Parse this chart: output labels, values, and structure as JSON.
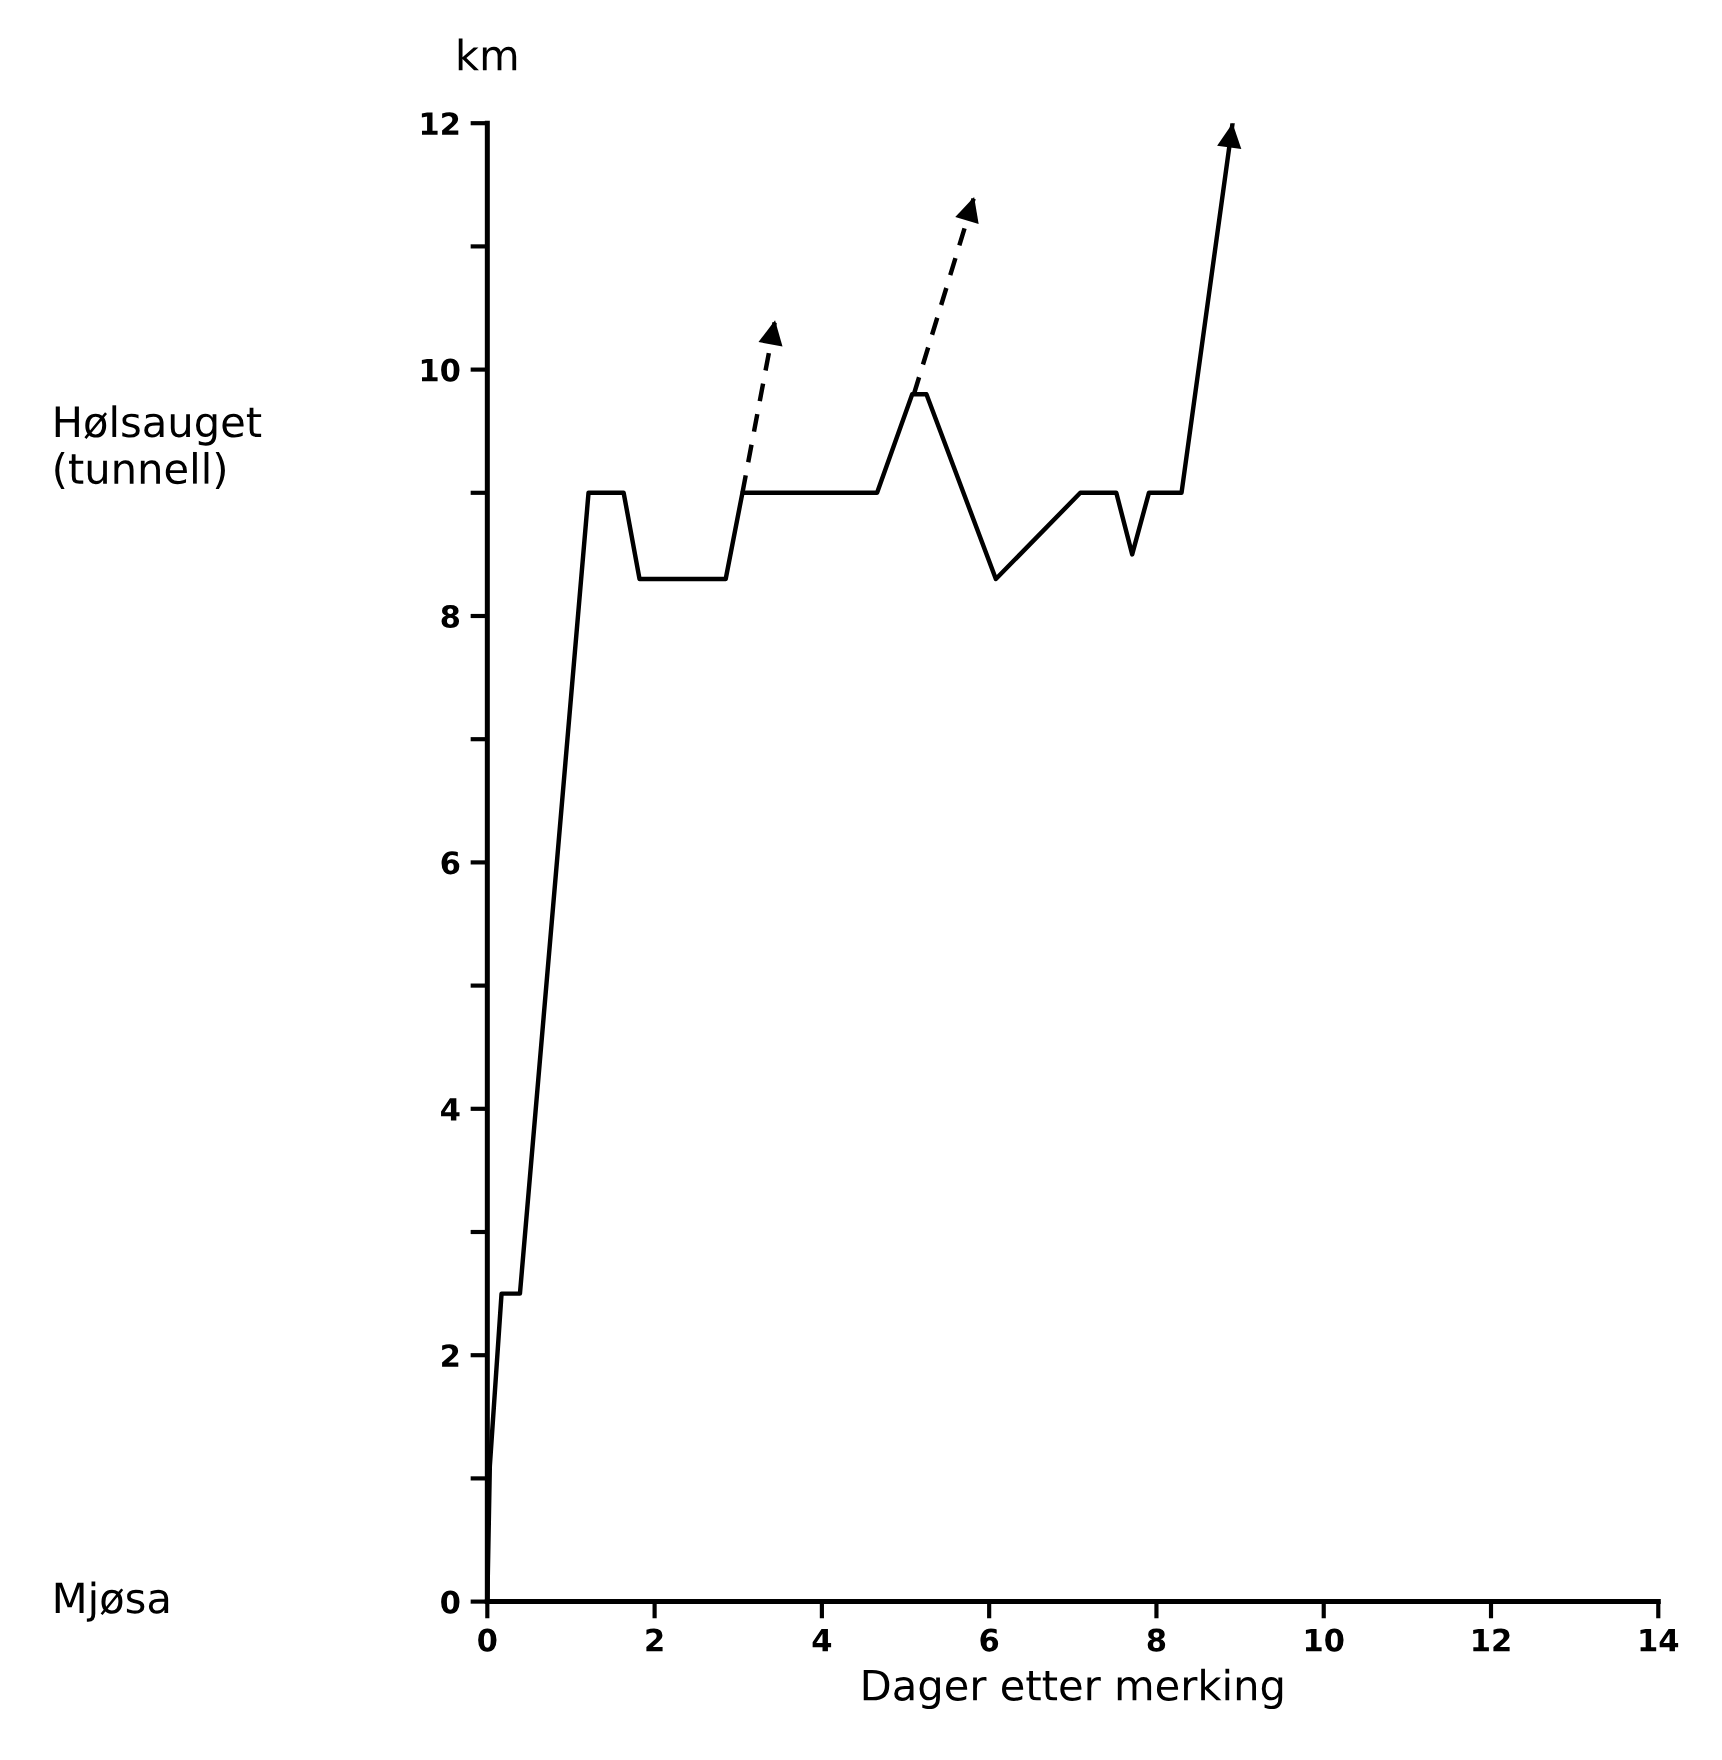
{
  "chart_data": {
    "type": "line",
    "xlabel": "Dager etter merking",
    "ylabel": "km",
    "xlim": [
      0,
      14
    ],
    "ylim": [
      0,
      12
    ],
    "xticks": [
      0,
      2,
      4,
      6,
      8,
      10,
      12,
      14
    ],
    "yticks": [
      0,
      {
        "value": 1,
        "label": null
      },
      2,
      {
        "value": 3,
        "label": null
      },
      4,
      {
        "value": 5,
        "label": null
      },
      6,
      {
        "value": 7,
        "label": null
      },
      8,
      {
        "value": 9,
        "label": null
      },
      10,
      {
        "value": 11,
        "label": null
      },
      12
    ],
    "grid": false,
    "legend": false,
    "marker": "none",
    "series": [
      {
        "color": "#000000",
        "line_style": "solid",
        "x": [
          0,
          0.03,
          0.17,
          0.39,
          1.21,
          1.63,
          1.82,
          2.85,
          3.05,
          4.66,
          5.08,
          5.25,
          6.08,
          7.09,
          7.52,
          7.71,
          7.91,
          8.3,
          8.91
        ],
        "values": [
          0,
          1.1,
          2.5,
          2.5,
          9.0,
          9.0,
          8.3,
          8.3,
          9.0,
          9.0,
          9.8,
          9.8,
          8.3,
          9.0,
          9.0,
          8.5,
          9.0,
          9.0,
          12.0
        ]
      },
      {
        "color": "#000000",
        "line_style": "dashed",
        "x": [
          3.05,
          3.44
        ],
        "values": [
          9.0,
          10.4
        ]
      },
      {
        "color": "#000000",
        "line_style": "dashed",
        "x": [
          5.1,
          5.82
        ],
        "values": [
          9.8,
          11.4
        ]
      }
    ],
    "annotations": [
      "Hølsauget\n(tunnell)",
      "Mjøsa"
    ]
  }
}
